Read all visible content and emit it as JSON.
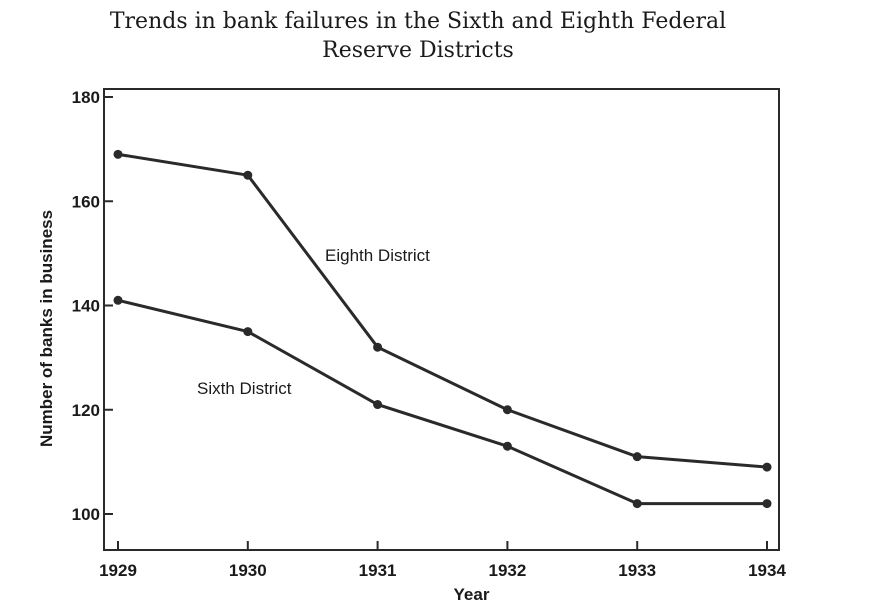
{
  "chart_data": {
    "type": "line",
    "title_lines": [
      "Trends in bank failures in the Sixth and Eighth Federal",
      "Reserve Districts"
    ],
    "xlabel": "Year",
    "ylabel": "Number of banks in business",
    "x": [
      1929,
      1930,
      1931,
      1932,
      1933,
      1934
    ],
    "x_ticks": [
      "1929",
      "1930",
      "1931",
      "1932",
      "1933",
      "1934"
    ],
    "ylim": [
      100,
      180
    ],
    "y_ticks": [
      100,
      120,
      140,
      160,
      180
    ],
    "grid": false,
    "series": [
      {
        "name": "Eighth District",
        "values": [
          169,
          165,
          132,
          120,
          111,
          109
        ]
      },
      {
        "name": "Sixth District",
        "values": [
          141,
          135,
          121,
          113,
          102,
          102
        ]
      }
    ],
    "line_color": "#2a2a2a"
  }
}
